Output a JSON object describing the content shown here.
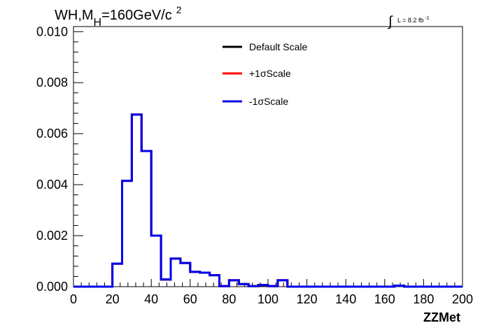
{
  "chart_data": {
    "type": "line",
    "title": {
      "text_main": "WH,M",
      "subscript": "H",
      "text_rest": "=160GeV/c",
      "superscript": "2"
    },
    "lumi": {
      "symbol": "∫",
      "text": "L = 8.2 fb",
      "superscript": "-1"
    },
    "xlabel": "ZZMet",
    "ylabel": "",
    "xlim": [
      0,
      200
    ],
    "ylim": [
      0,
      0.0102
    ],
    "xticks": [
      "0",
      "20",
      "40",
      "60",
      "80",
      "100",
      "120",
      "140",
      "160",
      "180",
      "200"
    ],
    "yticks": [
      "0.000",
      "0.002",
      "0.004",
      "0.006",
      "0.008",
      "0.010"
    ],
    "grid": false,
    "legend_position": "top-right",
    "series": [
      {
        "name": "Default Scale",
        "color": "#000000",
        "edges": [
          0,
          5,
          10,
          15,
          20,
          25,
          30,
          35,
          40,
          45,
          50,
          55,
          60,
          65,
          70,
          75,
          80,
          85,
          90,
          95,
          100,
          105,
          110,
          115,
          120,
          125,
          130,
          135,
          140,
          145,
          150,
          155,
          160,
          165,
          170,
          175,
          180,
          185,
          190,
          195,
          200
        ],
        "values": [
          0,
          0,
          0,
          0,
          0.0009,
          0.00415,
          0.00675,
          0.00532,
          0.002,
          0.00028,
          0.0011,
          0.00093,
          0.00058,
          0.00055,
          0.00045,
          2e-05,
          0.00025,
          0.0001,
          2e-05,
          6e-05,
          2e-05,
          0.00025,
          0,
          0,
          0,
          0,
          0,
          0,
          0,
          0,
          0,
          0,
          0,
          4e-05,
          0,
          0,
          0,
          0,
          0,
          0
        ]
      },
      {
        "name": "+1σScale",
        "color": "#ff0000",
        "edges": [
          0,
          5,
          10,
          15,
          20,
          25,
          30,
          35,
          40,
          45,
          50,
          55,
          60,
          65,
          70,
          75,
          80,
          85,
          90,
          95,
          100,
          105,
          110,
          115,
          120,
          125,
          130,
          135,
          140,
          145,
          150,
          155,
          160,
          165,
          170,
          175,
          180,
          185,
          190,
          195,
          200
        ],
        "values": [
          0,
          0,
          0,
          0,
          0.0009,
          0.00415,
          0.00675,
          0.00532,
          0.002,
          0.00028,
          0.0011,
          0.00093,
          0.00058,
          0.00055,
          0.00045,
          2e-05,
          0.00025,
          0.0001,
          2e-05,
          6e-05,
          2e-05,
          0.00025,
          0,
          0,
          0,
          0,
          0,
          0,
          0,
          0,
          0,
          0,
          0,
          4e-05,
          0,
          0,
          0,
          0,
          0,
          0
        ]
      },
      {
        "name": "-1σScale",
        "color": "#0000ee",
        "edges": [
          0,
          5,
          10,
          15,
          20,
          25,
          30,
          35,
          40,
          45,
          50,
          55,
          60,
          65,
          70,
          75,
          80,
          85,
          90,
          95,
          100,
          105,
          110,
          115,
          120,
          125,
          130,
          135,
          140,
          145,
          150,
          155,
          160,
          165,
          170,
          175,
          180,
          185,
          190,
          195,
          200
        ],
        "values": [
          0,
          0,
          0,
          0,
          0.0009,
          0.00415,
          0.00675,
          0.00532,
          0.002,
          0.00028,
          0.0011,
          0.00093,
          0.00058,
          0.00055,
          0.00045,
          2e-05,
          0.00025,
          0.0001,
          2e-05,
          6e-05,
          2e-05,
          0.00025,
          0,
          0,
          0,
          0,
          0,
          0,
          0,
          0,
          0,
          0,
          0,
          4e-05,
          0,
          0,
          0,
          0,
          0,
          0
        ]
      }
    ]
  }
}
